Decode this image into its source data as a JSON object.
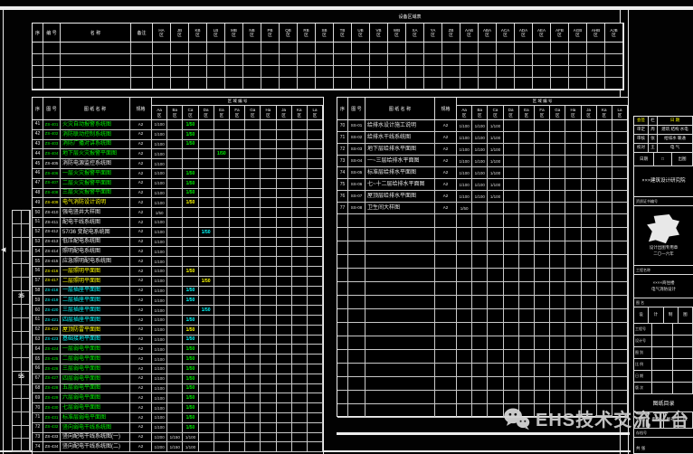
{
  "colors": {
    "green": "#00ef00",
    "yellow": "#ffff00",
    "cyan": "#00ffff",
    "line": "#d9d9d9",
    "watermark_gray": "#cbcbcb"
  },
  "watermark": {
    "icon": "wechat-icon",
    "text": "EHS技术交流平台"
  },
  "top_table": {
    "title": "设备区域表",
    "headers": {
      "no": "序",
      "code": "编 号",
      "name": "名 称",
      "sc": "备注"
    },
    "gcols": [
      "HA",
      "JB",
      "KB",
      "LB",
      "MB",
      "NB",
      "PB",
      "QB",
      "RB",
      "SB",
      "TB",
      "UB",
      "VB",
      "WB",
      "XA",
      "YA",
      "ZB",
      "AAB",
      "ABA",
      "ACA",
      "ADA",
      "AEA",
      "AFB",
      "AGB",
      "AHB",
      "AJB"
    ],
    "gsub": "区",
    "empty_rows": 4
  },
  "left_table": {
    "headers": {
      "no": "序",
      "code": "图 号",
      "name": "图 纸 名 称",
      "sc": "规格"
    },
    "group": "区 域 编 号",
    "gcols": [
      "Aa",
      "Ba",
      "Ca",
      "Da",
      "Ea",
      "Fa",
      "Ga",
      "Ha",
      "Ja",
      "Ka",
      "La"
    ],
    "gsub": "区",
    "rows": [
      {
        "no": "41",
        "code": "ZS-401",
        "name": "火灾自动报警系统图",
        "sc": "A2",
        "c": "g",
        "v": [
          "1/100"
        ],
        "hl": 2,
        "hlt": "1/50"
      },
      {
        "no": "42",
        "code": "ZS-402",
        "name": "消防联动控制系统图",
        "sc": "A2",
        "c": "g",
        "v": [
          "1/100"
        ],
        "hl": 2,
        "hlt": "1/50"
      },
      {
        "no": "43",
        "code": "ZS-403",
        "name": "消防广播对讲系统图",
        "sc": "A2",
        "c": "g",
        "v": [
          "1/100"
        ],
        "hl": 2,
        "hlt": "1/50"
      },
      {
        "no": "44",
        "code": "ZS-404",
        "name": "地下层火灾报警平面图",
        "sc": "A2",
        "c": "g",
        "v": [
          "1/100"
        ],
        "hl": 4,
        "hlt": "1/50"
      },
      {
        "no": "45",
        "code": "ZS-405",
        "name": "消防电源监控系统图",
        "sc": "A2",
        "c": "w",
        "v": [
          "1/100"
        ],
        "hl": -1,
        "hlt": ""
      },
      {
        "no": "46",
        "code": "ZS-406",
        "name": "一层火灾报警平面图",
        "sc": "A2",
        "c": "g",
        "v": [
          "1/100"
        ],
        "hl": 2,
        "hlt": "1/50"
      },
      {
        "no": "47",
        "code": "ZS-407",
        "name": "二层火灾报警平面图",
        "sc": "A2",
        "c": "g",
        "v": [
          "1/100"
        ],
        "hl": 2,
        "hlt": "1/50"
      },
      {
        "no": "48",
        "code": "ZS-408",
        "name": "三层火灾报警平面图",
        "sc": "A2",
        "c": "g",
        "v": [
          "1/100"
        ],
        "hl": 2,
        "hlt": "1/50"
      },
      {
        "no": "49",
        "code": "ZS-409",
        "name": "电气消防设计说明",
        "sc": "A2",
        "c": "y",
        "v": [
          "1/100"
        ],
        "hl": 2,
        "hlt": "1/50"
      },
      {
        "no": "50",
        "code": "ZS-410",
        "name": "强电竖井大样图",
        "sc": "A2",
        "c": "w",
        "v": [
          "1/50"
        ],
        "hl": -1,
        "hlt": ""
      },
      {
        "no": "51",
        "code": "ZS-411",
        "name": "配电干线系统图",
        "sc": "A2",
        "c": "w",
        "v": [
          "1/100"
        ],
        "hl": -1,
        "hlt": ""
      },
      {
        "no": "52",
        "code": "ZS-412",
        "name": "57/36 变配电系统图",
        "sc": "A2",
        "c": "w",
        "v": [
          "1/100"
        ],
        "hl": 3,
        "hlt": "1/50",
        "hc": "c"
      },
      {
        "no": "53",
        "code": "ZS-413",
        "name": "低压配电系统图",
        "sc": "A2",
        "c": "w",
        "v": [
          "1/100"
        ],
        "hl": -1,
        "hlt": ""
      },
      {
        "no": "54",
        "code": "ZS-414",
        "name": "照明配电系统图",
        "sc": "A2",
        "c": "w",
        "v": [
          "1/100"
        ],
        "hl": -1,
        "hlt": ""
      },
      {
        "no": "55",
        "code": "ZS-415",
        "name": "应急照明配电系统图",
        "sc": "A2",
        "c": "w",
        "v": [
          "1/100"
        ],
        "hl": -1,
        "hlt": ""
      },
      {
        "no": "56",
        "code": "ZS-416",
        "name": "一层照明平面图",
        "sc": "A2",
        "c": "y",
        "v": [
          "1/100"
        ],
        "hl": 2,
        "hlt": "1/50"
      },
      {
        "no": "57",
        "code": "ZS-417",
        "name": "二层照明平面图",
        "sc": "A2",
        "c": "y",
        "v": [
          "1/100"
        ],
        "hl": 3,
        "hlt": "1/50"
      },
      {
        "no": "58",
        "code": "ZS-418",
        "name": "一层插座平面图",
        "sc": "A2",
        "c": "c",
        "v": [
          "1/100"
        ],
        "hl": 2,
        "hlt": "1/50"
      },
      {
        "no": "59",
        "code": "ZS-419",
        "name": "二层插座平面图",
        "sc": "A2",
        "c": "c",
        "v": [
          "1/100"
        ],
        "hl": 2,
        "hlt": "1/50"
      },
      {
        "no": "60",
        "code": "ZS-420",
        "name": "三层插座平面图",
        "sc": "A2",
        "c": "c",
        "v": [
          "1/100"
        ],
        "hl": 3,
        "hlt": "1/50"
      },
      {
        "no": "61",
        "code": "ZS-421",
        "name": "四层插座平面图",
        "sc": "A2",
        "c": "c",
        "v": [
          "1/100"
        ],
        "hl": 2,
        "hlt": "1/50"
      },
      {
        "no": "62",
        "code": "ZS-422",
        "name": "屋顶防雷平面图",
        "sc": "A2",
        "c": "y",
        "v": [
          "1/100"
        ],
        "hl": 2,
        "hlt": "1/50"
      },
      {
        "no": "63",
        "code": "ZS-423",
        "name": "基础接地平面图",
        "sc": "A2",
        "c": "c",
        "v": [
          "1/100"
        ],
        "hl": 2,
        "hlt": "1/50"
      },
      {
        "no": "64",
        "code": "ZS-424",
        "name": "一层弱电平面图",
        "sc": "A2",
        "c": "g",
        "v": [
          "1/100"
        ],
        "hl": 2,
        "hlt": "1/50"
      },
      {
        "no": "65",
        "code": "ZS-425",
        "name": "二层弱电平面图",
        "sc": "A2",
        "c": "g",
        "v": [
          "1/100"
        ],
        "hl": 2,
        "hlt": "1/50"
      },
      {
        "no": "66",
        "code": "ZS-426",
        "name": "三层弱电平面图",
        "sc": "A2",
        "c": "g",
        "v": [
          "1/100"
        ],
        "hl": 2,
        "hlt": "1/50"
      },
      {
        "no": "67",
        "code": "ZS-427",
        "name": "四层弱电平面图",
        "sc": "A2",
        "c": "g",
        "v": [
          "1/100"
        ],
        "hl": 2,
        "hlt": "1/50"
      },
      {
        "no": "68",
        "code": "ZS-428",
        "name": "五层弱电平面图",
        "sc": "A2",
        "c": "g",
        "v": [
          "1/100"
        ],
        "hl": 2,
        "hlt": "1/50"
      },
      {
        "no": "69",
        "code": "ZS-429",
        "name": "六层弱电平面图",
        "sc": "A2",
        "c": "g",
        "v": [
          "1/100"
        ],
        "hl": 2,
        "hlt": "1/50"
      },
      {
        "no": "70",
        "code": "ZS-430",
        "name": "七层弱电平面图",
        "sc": "A2",
        "c": "g",
        "v": [
          "1/100"
        ],
        "hl": 2,
        "hlt": "1/50"
      },
      {
        "no": "71",
        "code": "ZS-431",
        "name": "标准层弱电平面图",
        "sc": "A2",
        "c": "g",
        "v": [
          "1/100"
        ],
        "hl": 2,
        "hlt": "1/50"
      },
      {
        "no": "72",
        "code": "ZS-432",
        "name": "竖向弱电干线系统图",
        "sc": "A2",
        "c": "g",
        "v": [
          "1/100"
        ],
        "hl": 2,
        "hlt": "1/50"
      },
      {
        "no": "73",
        "code": "ZS-433",
        "name": "竖向配电干线系统图(一)",
        "sc": "A2",
        "c": "w",
        "v": [
          "1/200",
          "1/150",
          "1/100"
        ],
        "hl": -1,
        "hlt": ""
      },
      {
        "no": "74",
        "code": "ZS-434",
        "name": "竖向配电干线系统图(二)",
        "sc": "A2",
        "c": "w",
        "v": [
          "1/200",
          "1/150",
          "1/100"
        ],
        "hl": -1,
        "hlt": ""
      }
    ]
  },
  "right_table": {
    "headers": {
      "no": "序",
      "code": "图 号",
      "name": "图 纸 名 称",
      "sc": "规格"
    },
    "group": "区 域 编 号",
    "gcols": [
      "Aa",
      "Ba",
      "Ca",
      "Da",
      "Ea",
      "Fa",
      "Ga",
      "Ha",
      "Ja",
      "Ka",
      "La"
    ],
    "gsub": "区",
    "rows": [
      {
        "no": "70",
        "code": "SS-01",
        "name": "给排水设计施工说明",
        "sc": "A2",
        "c": "w",
        "v": [
          "1/100",
          "1/100",
          "1/100"
        ],
        "hl": -1,
        "hlt": ""
      },
      {
        "no": "71",
        "code": "SS-02",
        "name": "给排水干线系统图",
        "sc": "A2",
        "c": "w",
        "v": [
          "1/100",
          "1/100",
          "1/100"
        ],
        "hl": -1,
        "hlt": ""
      },
      {
        "no": "72",
        "code": "SS-03",
        "name": "地下层给排水平面图",
        "sc": "A2",
        "c": "w",
        "v": [
          "1/100",
          "1/100",
          "1/100"
        ],
        "hl": -1,
        "hlt": ""
      },
      {
        "no": "73",
        "code": "SS-04",
        "name": "一~三层给排水平面图",
        "sc": "A2",
        "c": "w",
        "v": [
          "1/100",
          "1/100",
          "1/100"
        ],
        "hl": -1,
        "hlt": ""
      },
      {
        "no": "74",
        "code": "SS-05",
        "name": "标准层给排水平面图",
        "sc": "A2",
        "c": "w",
        "v": [
          "1/100",
          "1/100",
          "1/100"
        ],
        "hl": -1,
        "hlt": ""
      },
      {
        "no": "75",
        "code": "SS-06",
        "name": "七~十二层给排水平面图",
        "sc": "A2",
        "c": "w",
        "v": [
          "1/100",
          "1/100",
          "1/100"
        ],
        "hl": -1,
        "hlt": ""
      },
      {
        "no": "76",
        "code": "SS-07",
        "name": "屋顶层给排水平面图",
        "sc": "A2",
        "c": "w",
        "v": [
          "1/100",
          "1/100",
          "1/100"
        ],
        "hl": -1,
        "hlt": ""
      },
      {
        "no": "77",
        "code": "SS-08",
        "name": "卫生间大样图",
        "sc": "A2",
        "c": "w",
        "v": [
          "1/50"
        ],
        "hl": -1,
        "hlt": ""
      }
    ],
    "empty_rows": 15
  },
  "margin": {
    "rows": 18,
    "marks": {
      "6": "35",
      "12": "55"
    },
    "arrow": "◀"
  },
  "tb": {
    "sign": [
      "会签",
      "栏",
      "日 期"
    ],
    "r1": [
      "审定",
      "周",
      "建筑 结构 水电"
    ],
    "r2": [
      "审核",
      "张",
      "给排水 暖通"
    ],
    "r3": [
      "校对",
      "王",
      "电 气"
    ],
    "r4": [
      "日期",
      "□",
      "出图"
    ],
    "firm": "×××建筑设计研究院",
    "cert": "资质证书编号",
    "stamp_note1": "设计出图专用章",
    "stamp_note2": "二〇一六年",
    "proj_label": "工程名称",
    "proj1": "××××商住楼",
    "proj2": "电气消防设计",
    "name_label": "图 名",
    "r5": [
      "设",
      "计",
      "制",
      "图"
    ],
    "meta": [
      "工程号",
      "设计号",
      "图 别",
      "比 例",
      "日 期",
      "版 次"
    ],
    "sheet_title": "图纸目录",
    "r6": [
      "图别",
      "电施",
      "图号",
      "01"
    ],
    "archive": "存档号",
    "foot": "共 张"
  }
}
